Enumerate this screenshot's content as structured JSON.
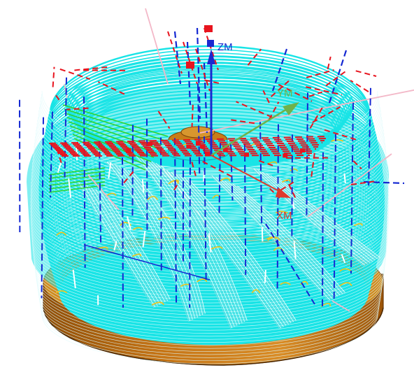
{
  "viewport": {
    "background": "#ffffff"
  },
  "colors": {
    "stock_top": "#d08a1e",
    "stock_side": "#b5650a",
    "stock_edge": "#7a4308",
    "toolpath_cyan": "#19e4e6",
    "toolpath_cyan_edge": "#0aa7b0",
    "rapid_red": "#e8141e",
    "plunge_blue": "#1428d2",
    "engage_green": "#2fd42f",
    "lead_yellow": "#f2c318",
    "retract_pink": "#f3b8c8",
    "white_moves": "#ffffff",
    "axis_x": "#e03a2c",
    "axis_y": "#6fb24a",
    "axis_z": "#1a2ad0"
  },
  "axes": {
    "x_label": "XM",
    "y_label": "YM",
    "z_label": "ZM"
  },
  "icons": {
    "origin": "wcs-origin-marker-icon"
  }
}
